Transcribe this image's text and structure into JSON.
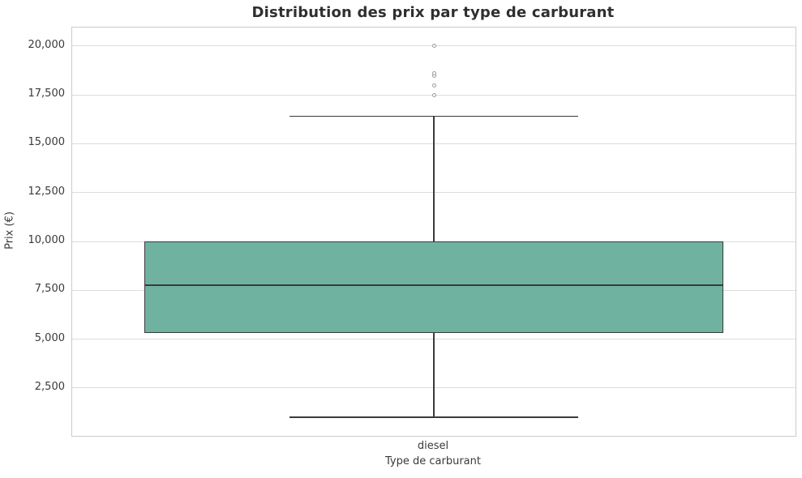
{
  "chart_data": {
    "type": "boxplot",
    "title": "Distribution des prix par type de carburant",
    "xlabel": "Type de carburant",
    "ylabel": "Prix (€)",
    "categories": [
      "diesel"
    ],
    "series": [
      {
        "category": "diesel",
        "whisker_low": 1000,
        "q1": 5300,
        "median": 7750,
        "q3": 10000,
        "whisker_high": 16400,
        "outliers": [
          17500,
          18000,
          18500,
          18600,
          20000
        ]
      }
    ],
    "ylim": [
      50,
      20950
    ],
    "yticks": [
      2500,
      5000,
      7500,
      10000,
      12500,
      15000,
      17500,
      20000
    ],
    "ytick_labels": [
      "2,500",
      "5,000",
      "7,500",
      "10,000",
      "12,500",
      "15,000",
      "17,500",
      "20,000"
    ],
    "grid": "horizontal",
    "legend": "none",
    "colors": {
      "box_fill": "#70b2a0",
      "box_edge": "#3b3b3b",
      "grid_line": "#dcdcdc",
      "spine": "#cbcbcb",
      "outlier_edge": "#999999",
      "tick_text": "#3a3a3a",
      "title_text": "#2f2f2f"
    }
  }
}
